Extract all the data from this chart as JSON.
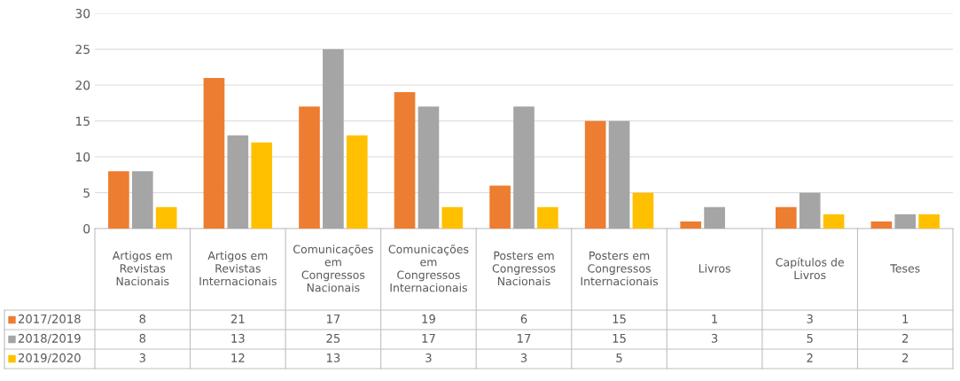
{
  "chart_data": {
    "type": "bar",
    "categories": [
      "Artigos em\nRevistas\nNacionais",
      "Artigos em\nRevistas\nInternacionais",
      "Comunicações\nem\nCongressos\nNacionais",
      "Comunicações\nem\nCongressos\nInternacionais",
      "Posters em\nCongressos\nNacionais",
      "Posters em\nCongressos\nInternacionais",
      "Livros",
      "Capítulos de\nLivros",
      "Teses"
    ],
    "series": [
      {
        "name": "2017/2018",
        "color": "#ed7d31",
        "values": [
          8,
          21,
          17,
          19,
          6,
          15,
          1,
          3,
          1
        ]
      },
      {
        "name": "2018/2019",
        "color": "#a5a5a5",
        "values": [
          8,
          13,
          25,
          17,
          17,
          15,
          3,
          5,
          2
        ]
      },
      {
        "name": "2019/2020",
        "color": "#ffc000",
        "values": [
          3,
          12,
          13,
          3,
          3,
          5,
          null,
          2,
          2
        ]
      }
    ],
    "ylim": [
      0,
      30
    ],
    "yticks": [
      0,
      5,
      10,
      15,
      20,
      25,
      30
    ],
    "grid": "y",
    "data_labels": true,
    "legend": "bottom left"
  }
}
